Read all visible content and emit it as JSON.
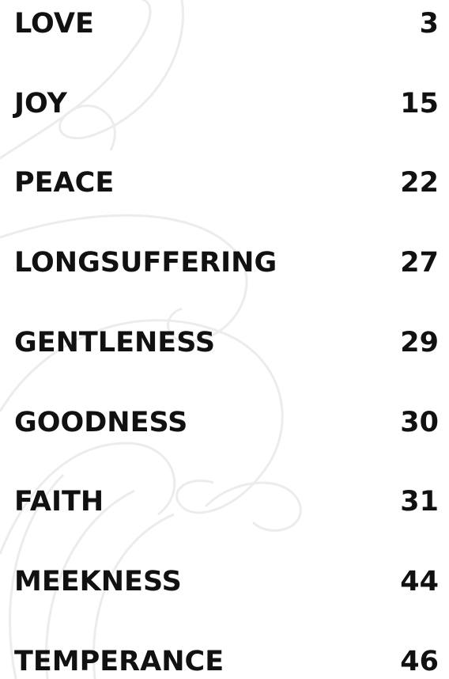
{
  "toc": {
    "entries": [
      {
        "title": "LOVE",
        "page": 3
      },
      {
        "title": "JOY",
        "page": 15
      },
      {
        "title": "PEACE",
        "page": 22
      },
      {
        "title": "LONGSUFFERING",
        "page": 27
      },
      {
        "title": "GENTLENESS",
        "page": 29
      },
      {
        "title": "GOODNESS",
        "page": 30
      },
      {
        "title": "FAITH",
        "page": 31
      },
      {
        "title": "MEEKNESS",
        "page": 44
      },
      {
        "title": "TEMPERANCE",
        "page": 46
      }
    ]
  }
}
